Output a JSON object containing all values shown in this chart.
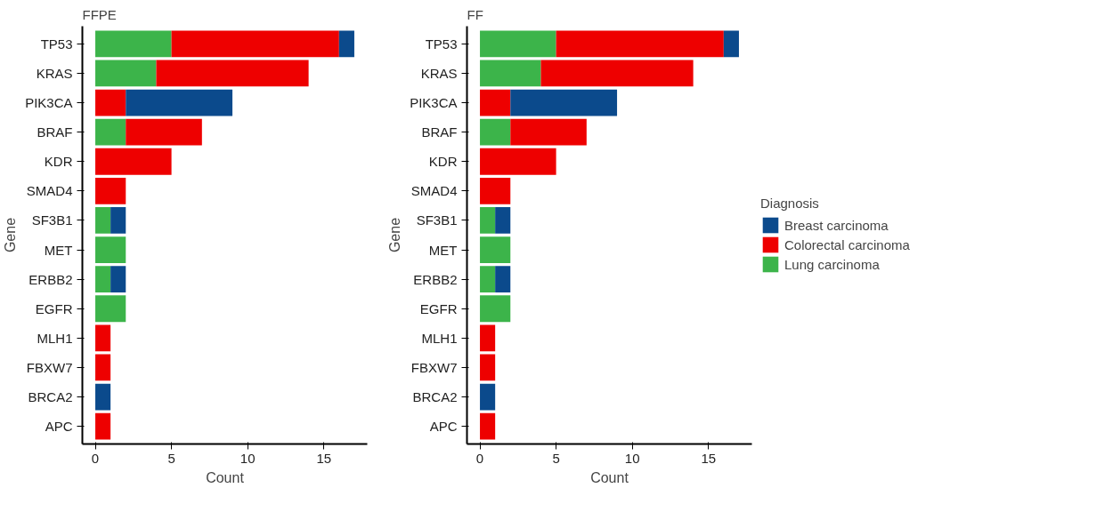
{
  "chart_data": [
    {
      "type": "bar",
      "title": "FFPE",
      "orientation": "horizontal",
      "stacked": true,
      "xlabel": "Count",
      "ylabel": "Gene",
      "categories": [
        "TP53",
        "KRAS",
        "PIK3CA",
        "BRAF",
        "KDR",
        "SMAD4",
        "SF3B1",
        "MET",
        "ERBB2",
        "EGFR",
        "MLH1",
        "FBXW7",
        "BRCA2",
        "APC"
      ],
      "xlim": [
        -0.85,
        17.85
      ],
      "xticks": [
        0,
        5,
        10,
        15
      ],
      "grid": false,
      "series": [
        {
          "color": "#3cb44a",
          "values": [
            5,
            4,
            null,
            2,
            null,
            null,
            1,
            2,
            1,
            2,
            null,
            null,
            null,
            null
          ]
        },
        {
          "color": "#ee0000",
          "values": [
            11,
            10,
            2,
            5,
            5,
            2,
            null,
            null,
            null,
            null,
            1,
            1,
            null,
            1
          ]
        },
        {
          "color": "#0b4a8c",
          "values": [
            1,
            null,
            7,
            null,
            null,
            null,
            1,
            null,
            1,
            null,
            null,
            null,
            1,
            null
          ]
        }
      ]
    },
    {
      "type": "bar",
      "title": "FF",
      "orientation": "horizontal",
      "stacked": true,
      "xlabel": "Count",
      "ylabel": "Gene",
      "legend_title": "Diagnosis",
      "categories": [
        "TP53",
        "KRAS",
        "PIK3CA",
        "BRAF",
        "KDR",
        "SMAD4",
        "SF3B1",
        "MET",
        "ERBB2",
        "EGFR",
        "MLH1",
        "FBXW7",
        "BRCA2",
        "APC"
      ],
      "xlim": [
        -0.85,
        17.85
      ],
      "xticks": [
        0,
        5,
        10,
        15
      ],
      "grid": false,
      "legend": "right",
      "series": [
        {
          "name": "Lung carcinoma",
          "color": "#3cb44a",
          "values": [
            5,
            4,
            null,
            2,
            null,
            null,
            1,
            2,
            1,
            2,
            null,
            null,
            null,
            null
          ]
        },
        {
          "name": "Colorectal carcinoma",
          "color": "#ee0000",
          "values": [
            11,
            10,
            2,
            5,
            5,
            2,
            null,
            null,
            null,
            null,
            1,
            1,
            null,
            1
          ]
        },
        {
          "name": "Breast carcinoma",
          "color": "#0b4a8c",
          "values": [
            1,
            null,
            7,
            null,
            null,
            null,
            1,
            null,
            1,
            null,
            null,
            null,
            1,
            null
          ]
        }
      ]
    }
  ]
}
